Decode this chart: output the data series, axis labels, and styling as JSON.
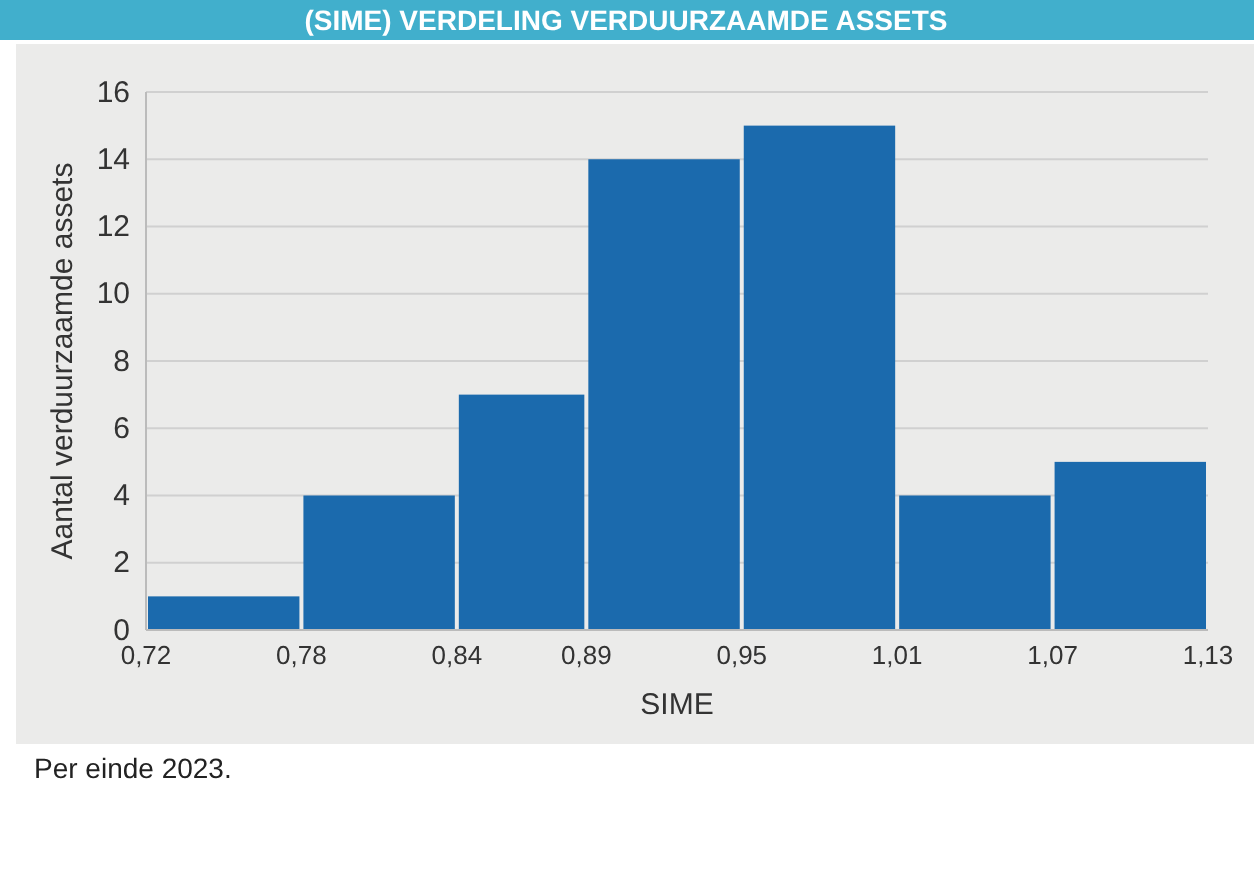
{
  "chart_data": {
    "type": "histogram",
    "title": "(SIME) VERDELING VERDUURZAAMDE ASSETS",
    "xlabel": "SIME",
    "ylabel": "Aantal verduurzaamde assets",
    "bins": [
      0.72,
      0.78,
      0.84,
      0.89,
      0.95,
      1.01,
      1.07,
      1.13
    ],
    "values": [
      1,
      4,
      7,
      14,
      15,
      4,
      5
    ],
    "color": "#1b6aad",
    "xlim": [
      0.72,
      1.13
    ],
    "xticks": [
      {
        "value": 0.72,
        "label": "0,72"
      },
      {
        "value": 0.78,
        "label": "0,78"
      },
      {
        "value": 0.84,
        "label": "0,84"
      },
      {
        "value": 0.89,
        "label": "0,89"
      },
      {
        "value": 0.95,
        "label": "0,95"
      },
      {
        "value": 1.01,
        "label": "1,01"
      },
      {
        "value": 1.07,
        "label": "1,07"
      },
      {
        "value": 1.13,
        "label": "1,13"
      }
    ],
    "ylim": [
      0,
      16
    ],
    "yticks": [
      0,
      2,
      4,
      6,
      8,
      10,
      12,
      14,
      16
    ],
    "grid": "y",
    "annotations": [
      "Per einde 2023."
    ]
  }
}
